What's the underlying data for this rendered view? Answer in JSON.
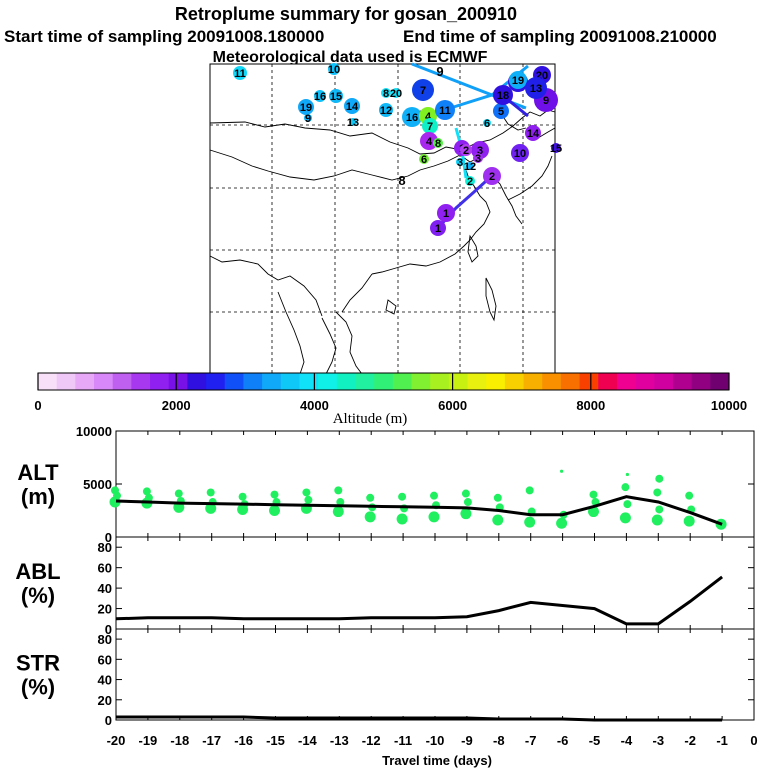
{
  "header": {
    "title": "Retroplume summary for gosan_200910",
    "start": "Start time of sampling 20091008.180000",
    "end": "End time of sampling 20091008.210000",
    "met": "Meteorological data used is ECMWF"
  },
  "colorbar": {
    "label": "Altitude (m)",
    "ticks": [
      "0",
      "2000",
      "4000",
      "6000",
      "8000",
      "10000"
    ],
    "colors": [
      "#f8e0f8",
      "#f0c8f8",
      "#e8a8f8",
      "#d888f8",
      "#c060f0",
      "#a838f0",
      "#9020f0",
      "#7810e8",
      "#3010e0",
      "#2020f0",
      "#1050f8",
      "#1080f8",
      "#10a8f8",
      "#10c8f8",
      "#10e0f8",
      "#10f0e8",
      "#10f0c0",
      "#20f0a0",
      "#30f078",
      "#50f050",
      "#80f030",
      "#a8f020",
      "#c8f010",
      "#e8f010",
      "#f8f000",
      "#f8d000",
      "#f8b000",
      "#f89000",
      "#f87000",
      "#f84000",
      "#f00050",
      "#f00090",
      "#e000a0",
      "#d000a0",
      "#b00090",
      "#900080",
      "#700070"
    ]
  },
  "map": {
    "markers": [
      {
        "label": "11",
        "color": "#10d8f8",
        "r": 7
      },
      {
        "label": "10",
        "color": "#10c0f8",
        "r": 6
      },
      {
        "label": "16",
        "color": "#10c0f8",
        "r": 6
      },
      {
        "label": "15",
        "color": "#10b8f8",
        "r": 7
      },
      {
        "label": "19",
        "color": "#10a8f8",
        "r": 8
      },
      {
        "label": "9",
        "color": "#10b0f8",
        "r": 4
      },
      {
        "label": "14",
        "color": "#10a8f8",
        "r": 8
      },
      {
        "label": "13",
        "color": "#10c8f8",
        "r": 4
      },
      {
        "label": "20",
        "color": "#10e0f8",
        "r": 5
      },
      {
        "label": "8",
        "color": "#10e0f8",
        "r": 5
      },
      {
        "label": "12",
        "color": "#10b8f8",
        "r": 7
      },
      {
        "label": "9",
        "color": "#10a8f8",
        "r": 3
      },
      {
        "label": "7",
        "color": "#1040e8",
        "r": 11
      },
      {
        "label": "16",
        "color": "#10b0f8",
        "r": 10
      },
      {
        "label": "4",
        "color": "#80f020",
        "r": 9
      },
      {
        "label": "11",
        "color": "#1080f8",
        "r": 10
      },
      {
        "label": "7",
        "color": "#10f0c8",
        "r": 8
      },
      {
        "label": "4",
        "color": "#a828f0",
        "r": 9
      },
      {
        "label": "8",
        "color": "#50f040",
        "r": 5
      },
      {
        "label": "6",
        "color": "#70f030",
        "r": 5
      },
      {
        "label": "3",
        "color": "#9020f0",
        "r": 9
      },
      {
        "label": "1",
        "color": "#9020f0",
        "r": 8
      },
      {
        "label": "2",
        "color": "#a030f0",
        "r": 9
      },
      {
        "label": "12",
        "color": "#10b0f8",
        "r": 4
      },
      {
        "label": "2",
        "color": "#10f0d8",
        "r": 5
      },
      {
        "label": "5",
        "color": "#1070f8",
        "r": 8
      },
      {
        "label": "6",
        "color": "#10d8f8",
        "r": 4
      },
      {
        "label": "3",
        "color": "#10d0f8",
        "r": 4
      },
      {
        "label": "17",
        "color": "#3010e0",
        "r": 10
      },
      {
        "label": "18",
        "color": "#3010e0",
        "r": 10
      },
      {
        "label": "19",
        "color": "#10b0f8",
        "r": 9
      },
      {
        "label": "20",
        "color": "#3010e0",
        "r": 9
      },
      {
        "label": "9",
        "color": "#7010e8",
        "r": 12
      },
      {
        "label": "13",
        "color": "#2020e8",
        "r": 11
      },
      {
        "label": "10",
        "color": "#7020f0",
        "r": 9
      },
      {
        "label": "15",
        "color": "#4010e0",
        "r": 5
      },
      {
        "label": "14",
        "color": "#9020f0",
        "r": 8
      },
      {
        "label": "1",
        "color": "#9020f0",
        "r": 9
      },
      {
        "label": "3",
        "color": "#a030f0",
        "r": 5
      },
      {
        "label": "2",
        "color": "#b040f0",
        "r": 6
      },
      {
        "label": "1",
        "color": "#8020f0",
        "r": 8
      },
      {
        "label": "8",
        "color": "#ffffff",
        "r": 0
      },
      {
        "label": "9",
        "color": "#ffffff",
        "r": 0
      }
    ]
  },
  "chart_data": [
    {
      "type": "line",
      "panel": "ALT",
      "ylabel": "ALT\n(m)",
      "ylim": [
        0,
        10000
      ],
      "yticks": [
        0,
        5000,
        10000
      ],
      "x": [
        -20,
        -19,
        -18,
        -17,
        -16,
        -15,
        -14,
        -13,
        -12,
        -11,
        -10,
        -9,
        -8,
        -7,
        -6,
        -5,
        -4,
        -3,
        -2,
        -1
      ],
      "series": [
        {
          "name": "mean altitude",
          "values": [
            3400,
            3300,
            3200,
            3150,
            3100,
            3050,
            3000,
            2950,
            2900,
            2850,
            2800,
            2750,
            2500,
            2100,
            2100,
            2900,
            3800,
            3300,
            2300,
            1200
          ]
        }
      ],
      "scatter": [
        {
          "x": -20,
          "y": [
            3300,
            3900,
            4400
          ]
        },
        {
          "x": -19,
          "y": [
            3200,
            3700,
            4300
          ]
        },
        {
          "x": -18,
          "y": [
            2800,
            3400,
            4100
          ]
        },
        {
          "x": -17,
          "y": [
            2700,
            3300,
            4200
          ]
        },
        {
          "x": -16,
          "y": [
            2600,
            3100,
            3800
          ]
        },
        {
          "x": -15,
          "y": [
            2500,
            3300,
            4000
          ]
        },
        {
          "x": -14,
          "y": [
            2700,
            3500,
            4200
          ]
        },
        {
          "x": -13,
          "y": [
            2400,
            3300,
            4400
          ]
        },
        {
          "x": -12,
          "y": [
            1900,
            2800,
            3700
          ]
        },
        {
          "x": -11,
          "y": [
            1700,
            2700,
            3800
          ]
        },
        {
          "x": -10,
          "y": [
            1900,
            3000,
            3900
          ]
        },
        {
          "x": -9,
          "y": [
            2200,
            3300,
            4100
          ]
        },
        {
          "x": -8,
          "y": [
            1600,
            2800,
            3700
          ]
        },
        {
          "x": -7,
          "y": [
            1400,
            2400,
            4400
          ]
        },
        {
          "x": -6,
          "y": [
            1300,
            2100,
            6200
          ]
        },
        {
          "x": -5,
          "y": [
            2400,
            3300,
            4000
          ]
        },
        {
          "x": -4,
          "y": [
            1800,
            3100,
            4700,
            5900
          ]
        },
        {
          "x": -3,
          "y": [
            1600,
            2600,
            4200,
            5500
          ]
        },
        {
          "x": -2,
          "y": [
            1500,
            2600,
            3900
          ]
        },
        {
          "x": -1,
          "y": [
            1200
          ]
        }
      ]
    },
    {
      "type": "line",
      "panel": "ABL",
      "ylabel": "ABL\n(%)",
      "ylim": [
        0,
        90
      ],
      "yticks": [
        0,
        20,
        40,
        60,
        80
      ],
      "x": [
        -20,
        -19,
        -18,
        -17,
        -16,
        -15,
        -14,
        -13,
        -12,
        -11,
        -10,
        -9,
        -8,
        -7,
        -6,
        -5,
        -4,
        -3,
        -2,
        -1
      ],
      "series": [
        {
          "name": "ABL fraction",
          "values": [
            10,
            11,
            11,
            11,
            10,
            10,
            10,
            10,
            11,
            11,
            11,
            12,
            18,
            26,
            23,
            20,
            5,
            5,
            27,
            51
          ]
        }
      ]
    },
    {
      "type": "line",
      "panel": "STR",
      "ylabel": "STR\n(%)",
      "ylim": [
        0,
        90
      ],
      "yticks": [
        0,
        20,
        40,
        60,
        80
      ],
      "xlabel": "Travel time (days)",
      "xticks": [
        -20,
        -19,
        -18,
        -17,
        -16,
        -15,
        -14,
        -13,
        -12,
        -11,
        -10,
        -9,
        -8,
        -7,
        -6,
        -5,
        -4,
        -3,
        -2,
        -1,
        0
      ],
      "x": [
        -20,
        -19,
        -18,
        -17,
        -16,
        -15,
        -14,
        -13,
        -12,
        -11,
        -10,
        -9,
        -8,
        -7,
        -6,
        -5,
        -4,
        -3,
        -2,
        -1
      ],
      "series": [
        {
          "name": "stratospheric fraction",
          "values": [
            3,
            3,
            3,
            3,
            3,
            2,
            2,
            2,
            2,
            2,
            2,
            2,
            1,
            1,
            1,
            0,
            0,
            0,
            0,
            0
          ]
        }
      ]
    }
  ]
}
